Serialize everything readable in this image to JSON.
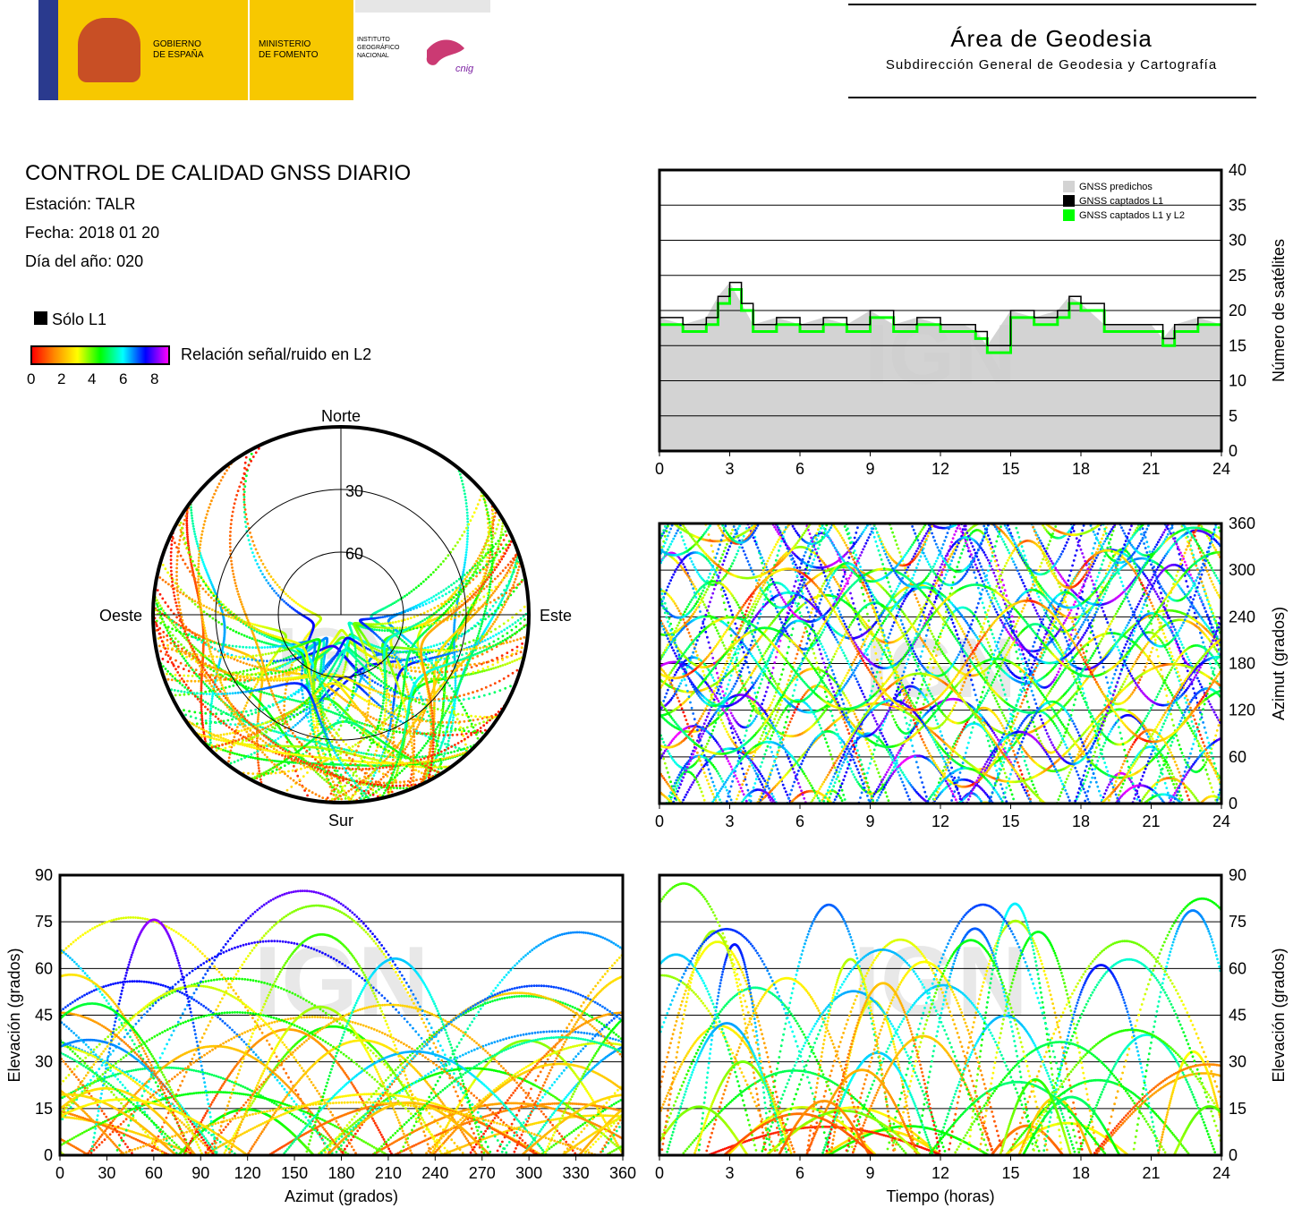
{
  "header": {
    "gov_line1": "GOBIERNO",
    "gov_line2": "DE ESPAÑA",
    "min_line1": "MINISTERIO",
    "min_line2": "DE FOMENTO",
    "ign_line1": "INSTITUTO",
    "ign_line2": "GEOGRÁFICO",
    "ign_line3": "NACIONAL",
    "cnig": "cnig",
    "area_title": "Área de Geodesia",
    "area_subtitle": "Subdirección General de Geodesia y Cartografía"
  },
  "info": {
    "title": "CONTROL DE CALIDAD GNSS DIARIO",
    "station": "Estación: TALR",
    "date": "Fecha: 2018 01 20",
    "doy": "Día del año: 020"
  },
  "legend": {
    "l1_only": "Sólo L1",
    "snr_label": "Relación señal/ruido en L2",
    "snr_ticks": [
      "0",
      "2",
      "4",
      "6",
      "8"
    ],
    "snr_colors": [
      "#ff0000",
      "#ff8c00",
      "#ffff00",
      "#00ff00",
      "#00ffff",
      "#0000ff",
      "#ff00ff"
    ]
  },
  "watermark": "IGN",
  "chart_data": [
    {
      "id": "skyplot",
      "type": "scatter",
      "labels": {
        "north": "Norte",
        "south": "Sur",
        "east": "Este",
        "west": "Oeste"
      },
      "elevation_rings": [
        "30",
        "60"
      ]
    },
    {
      "id": "satellites",
      "type": "area",
      "ylabel": "Número de satélites",
      "xticks": [
        "0",
        "3",
        "6",
        "9",
        "12",
        "15",
        "18",
        "21",
        "24"
      ],
      "yticks": [
        "0",
        "5",
        "10",
        "15",
        "20",
        "25",
        "30",
        "35",
        "40"
      ],
      "xlim": [
        0,
        24
      ],
      "ylim": [
        0,
        40
      ],
      "legend": [
        "GNSS predichos",
        "GNSS captados L1",
        "GNSS captados L1 y L2"
      ],
      "legend_colors": [
        "#d3d3d3",
        "#000000",
        "#00ff00"
      ],
      "x": [
        0,
        1,
        2,
        2.5,
        3,
        3.5,
        4,
        5,
        6,
        7,
        8,
        9,
        10,
        11,
        12,
        13,
        13.5,
        14,
        15,
        16,
        17,
        17.5,
        18,
        19,
        20,
        21,
        21.5,
        22,
        23,
        24
      ],
      "series": [
        {
          "name": "GNSS predichos",
          "values": [
            19,
            18,
            19,
            22,
            24,
            21,
            18,
            19,
            18,
            19,
            18,
            20,
            18,
            19,
            18,
            18,
            17,
            15,
            20,
            19,
            20,
            22,
            21,
            18,
            18,
            18,
            16,
            18,
            19,
            18
          ]
        },
        {
          "name": "GNSS captados L1",
          "values": [
            19,
            18,
            19,
            22,
            24,
            21,
            18,
            19,
            18,
            19,
            18,
            20,
            18,
            19,
            18,
            18,
            17,
            15,
            20,
            19,
            20,
            22,
            21,
            18,
            18,
            18,
            16,
            18,
            19,
            18
          ]
        },
        {
          "name": "GNSS captados L1 y L2",
          "values": [
            18,
            17,
            18,
            21,
            23,
            20,
            17,
            18,
            17,
            18,
            17,
            19,
            17,
            18,
            17,
            17,
            16,
            14,
            19,
            18,
            19,
            21,
            20,
            17,
            17,
            17,
            15,
            17,
            18,
            17
          ]
        }
      ]
    },
    {
      "id": "azimuth_time",
      "type": "scatter",
      "ylabel": "Azimut (grados)",
      "xticks": [
        "0",
        "3",
        "6",
        "9",
        "12",
        "15",
        "18",
        "21",
        "24"
      ],
      "yticks": [
        "0",
        "60",
        "120",
        "180",
        "240",
        "300",
        "360"
      ],
      "xlim": [
        0,
        24
      ],
      "ylim": [
        0,
        360
      ]
    },
    {
      "id": "elev_azimuth",
      "type": "scatter",
      "xlabel": "Azimut (grados)",
      "ylabel": "Elevación (grados)",
      "xticks": [
        "0",
        "30",
        "60",
        "90",
        "120",
        "150",
        "180",
        "210",
        "240",
        "270",
        "300",
        "330",
        "360"
      ],
      "yticks": [
        "0",
        "15",
        "30",
        "45",
        "60",
        "75",
        "90"
      ],
      "xlim": [
        0,
        360
      ],
      "ylim": [
        0,
        90
      ]
    },
    {
      "id": "elev_time",
      "type": "scatter",
      "xlabel": "Tiempo (horas)",
      "ylabel": "Elevación (grados)",
      "xticks": [
        "0",
        "3",
        "6",
        "9",
        "12",
        "15",
        "18",
        "21",
        "24"
      ],
      "yticks": [
        "0",
        "15",
        "30",
        "45",
        "60",
        "75",
        "90"
      ],
      "xlim": [
        0,
        24
      ],
      "ylim": [
        0,
        90
      ]
    }
  ]
}
